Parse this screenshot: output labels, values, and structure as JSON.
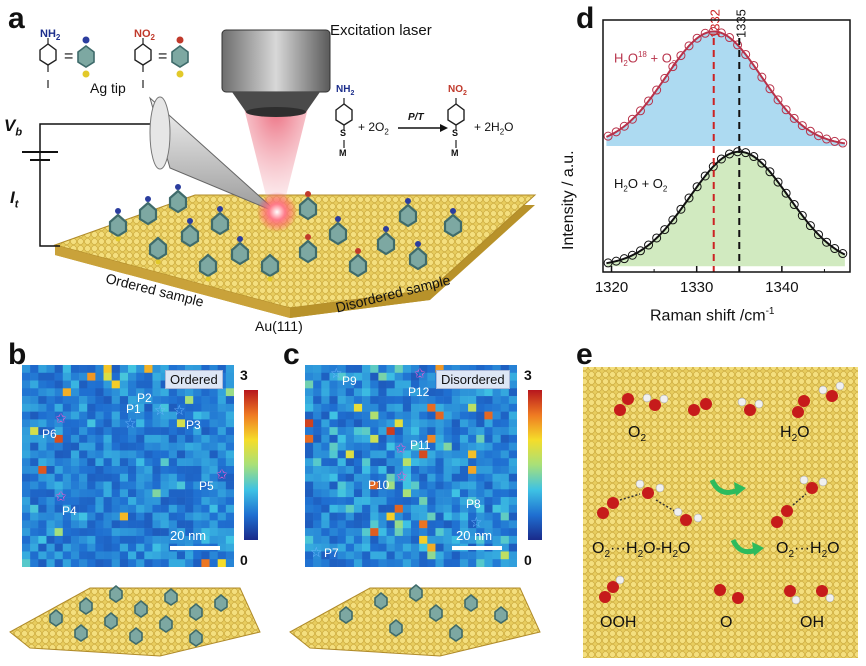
{
  "panel_labels": {
    "a": "a",
    "b": "b",
    "c": "c",
    "d": "d",
    "e": "e"
  },
  "panel_a": {
    "nh2": "NH",
    "nh2_sub": "2",
    "no2": "NO",
    "no2_sub": "2",
    "eq1": "=",
    "eq2": "=",
    "excitation": "Excitation laser",
    "ag_tip": "Ag tip",
    "vb": "V",
    "vb_sub": "b",
    "it": "I",
    "it_sub": "t",
    "rxn_nh2": "NH",
    "rxn_nh2_sub": "2",
    "rxn_plus1": "+ 2O",
    "rxn_plus1_sub": "2",
    "rxn_cond": "P/T",
    "rxn_no2": "NO",
    "rxn_no2_sub": "2",
    "rxn_plus2": "+ 2H",
    "rxn_plus2_sub": "2",
    "rxn_plus2_end": "O",
    "s1": "S",
    "m1": "M",
    "s2": "S",
    "m2": "M",
    "ordered": "Ordered sample",
    "disordered": "Disordered sample",
    "au": "Au(111)"
  },
  "panel_b": {
    "tag": "Ordered",
    "cbar_max": "3",
    "cbar_min": "0",
    "scalebar": "20 nm",
    "points": [
      "P1",
      "P2",
      "P3",
      "P4",
      "P5",
      "P6"
    ]
  },
  "panel_c": {
    "tag": "Disordered",
    "cbar_max": "3",
    "cbar_min": "0",
    "scalebar": "20 nm",
    "points": [
      "P7",
      "P8",
      "P9",
      "P10",
      "P11",
      "P12"
    ]
  },
  "panel_e": {
    "o2": "O",
    "o2_sub": "2",
    "h2o": "H",
    "h2o_sub": "2",
    "h2o_end": "O",
    "cluster1": "O",
    "cluster1_sub": "2",
    "cluster1_rest": "···H",
    "cluster1_sub2": "2",
    "cluster1_end": "O-H",
    "cluster1_sub3": "2",
    "cluster1_end2": "O",
    "cluster2": "O",
    "cluster2_sub": "2",
    "cluster2_rest": "···H",
    "cluster2_sub2": "2",
    "cluster2_end": "O",
    "ooh": "OOH",
    "o": "O",
    "oh": "OH"
  },
  "chart_data": {
    "type": "line",
    "xlabel": "Raman shift /cm",
    "xlabel_sup": "-1",
    "ylabel": "Intensity / a.u.",
    "xlim": [
      1319,
      1348
    ],
    "xticks": [
      1320,
      1330,
      1340
    ],
    "vlines": [
      {
        "x": 1332,
        "label": "1332",
        "color": "#cc2222"
      },
      {
        "x": 1335,
        "label": "1335",
        "color": "#111111"
      }
    ],
    "series": [
      {
        "name": "H2O18 + O2",
        "name_parts": [
          "H",
          "2",
          "O",
          "18",
          " + O",
          "2"
        ],
        "center": 1332,
        "sigma": 5.6,
        "amplitude": 1.0,
        "baseline": 1.05,
        "line_color": "#b8324a",
        "fill_color": "#9fd3ef"
      },
      {
        "name": "H2O + O2",
        "name_parts": [
          "H",
          "2",
          "O",
          "",
          " + O",
          "2"
        ],
        "center": 1335,
        "sigma": 5.8,
        "amplitude": 1.0,
        "baseline": 0,
        "line_color": "#111111",
        "fill_color": "#c9e6b5"
      }
    ],
    "colors": {
      "ordered_star": "#e05bd0",
      "cold_star": "#6fb7ff"
    }
  }
}
